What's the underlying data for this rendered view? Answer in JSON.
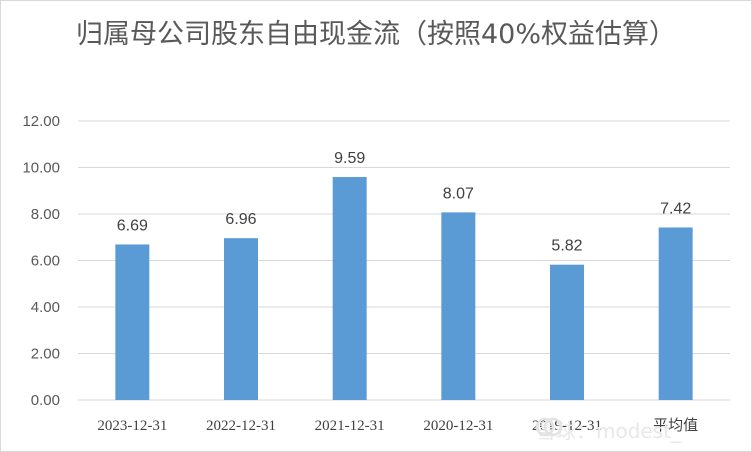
{
  "chart_data": {
    "type": "bar",
    "title": "归属母公司股东自由现金流（按照40%权益估算）",
    "categories": [
      "2023-12-31",
      "2022-12-31",
      "2021-12-31",
      "2020-12-31",
      "2019-12-31",
      "平均值"
    ],
    "values": [
      6.69,
      6.96,
      9.59,
      8.07,
      5.82,
      7.42
    ],
    "value_labels": [
      "6.69",
      "6.96",
      "9.59",
      "8.07",
      "5.82",
      "7.42"
    ],
    "ylim": [
      0,
      12
    ],
    "yticks": [
      "0.00",
      "2.00",
      "4.00",
      "6.00",
      "8.00",
      "10.00",
      "12.00"
    ],
    "grid": true,
    "legend": "none",
    "xlabel": "",
    "ylabel": "",
    "colors": {
      "bar": "#5b9bd5",
      "grid": "#d9d9d9",
      "title": "#595959"
    }
  },
  "watermark": {
    "text": "雪球：modest_",
    "icon": "snowball-logo-icon"
  }
}
